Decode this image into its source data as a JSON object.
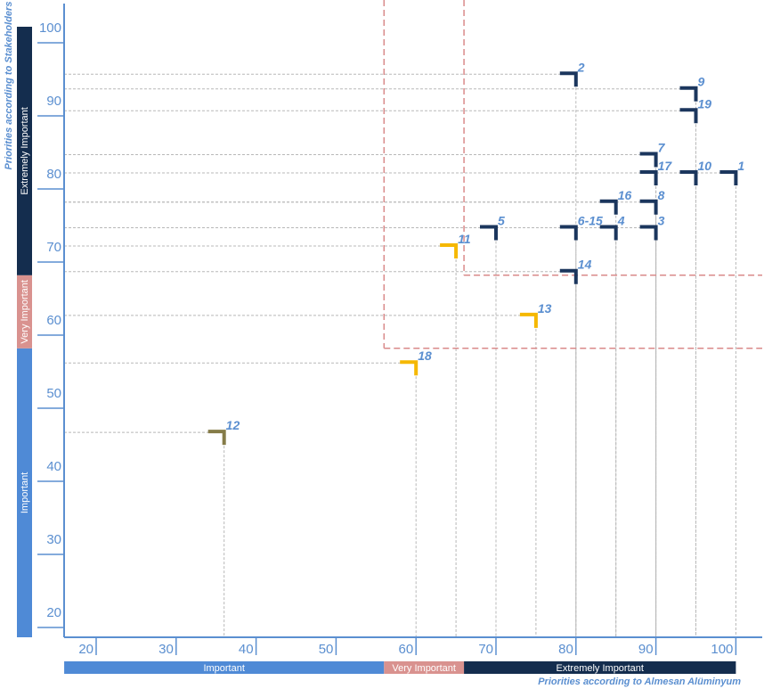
{
  "chart_data": {
    "type": "scatter",
    "xlabel": "Priorities according to Almesan Alüminyum",
    "ylabel": "Priorities according to Stakeholders",
    "xlim": [
      20,
      100
    ],
    "ylim": [
      20,
      100
    ],
    "x_ticks": [
      "20",
      "30",
      "40",
      "50",
      "60",
      "70",
      "80",
      "90",
      "100"
    ],
    "y_ticks": [
      "20",
      "30",
      "40",
      "50",
      "60",
      "70",
      "80",
      "90",
      "100"
    ],
    "bands": [
      {
        "label": "Important",
        "from": 16,
        "to": 56,
        "color": "#4f8ad6"
      },
      {
        "label": "Very Important",
        "from": 56,
        "to": 66,
        "color": "#d9928f"
      },
      {
        "label": "Extremely Important",
        "from": 66,
        "to": 100,
        "color": "#142d4e"
      }
    ],
    "colors": {
      "extremely": "#1b365d",
      "very": "#f5b800",
      "important": "#857c48",
      "threshold": "#d98a8a",
      "guide": "#b8b8b8",
      "axis": "#5b8fd0"
    },
    "points": [
      {
        "label": "1",
        "x": 100,
        "y": 80,
        "group": "extremely"
      },
      {
        "label": "2",
        "x": 80,
        "y": 93.5,
        "group": "extremely"
      },
      {
        "label": "3",
        "x": 90,
        "y": 72.5,
        "group": "extremely"
      },
      {
        "label": "4",
        "x": 85,
        "y": 72.5,
        "group": "extremely"
      },
      {
        "label": "5",
        "x": 70,
        "y": 72.5,
        "group": "extremely"
      },
      {
        "label": "6-15",
        "x": 80,
        "y": 72.5,
        "group": "extremely"
      },
      {
        "label": "7",
        "x": 90,
        "y": 82.5,
        "group": "extremely"
      },
      {
        "label": "8",
        "x": 90,
        "y": 76,
        "group": "extremely"
      },
      {
        "label": "9",
        "x": 95,
        "y": 91.5,
        "group": "extremely"
      },
      {
        "label": "10",
        "x": 95,
        "y": 80,
        "group": "extremely"
      },
      {
        "label": "11",
        "x": 65,
        "y": 70,
        "group": "very"
      },
      {
        "label": "12",
        "x": 36,
        "y": 44.5,
        "group": "important"
      },
      {
        "label": "13",
        "x": 75,
        "y": 60.5,
        "group": "very"
      },
      {
        "label": "14",
        "x": 80,
        "y": 66.5,
        "group": "extremely"
      },
      {
        "label": "16",
        "x": 85,
        "y": 76,
        "group": "extremely"
      },
      {
        "label": "17",
        "x": 90,
        "y": 80,
        "group": "extremely"
      },
      {
        "label": "18",
        "x": 60,
        "y": 54,
        "group": "very"
      },
      {
        "label": "19",
        "x": 95,
        "y": 88.5,
        "group": "extremely"
      }
    ],
    "thresholds": [
      {
        "x": 56,
        "y": 56
      },
      {
        "x": 66,
        "y": 66
      }
    ]
  }
}
